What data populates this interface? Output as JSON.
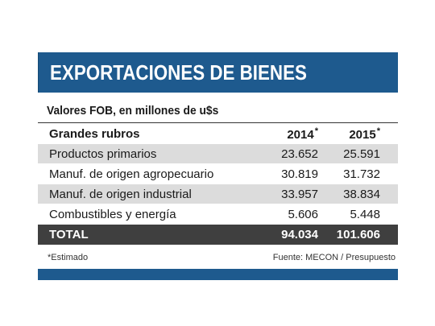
{
  "title": "EXPORTACIONES DE BIENES",
  "subtitle": "Valores FOB, en millones de u$s",
  "columns": {
    "name": "Grandes rubros",
    "year_a": "2014",
    "year_b": "2015",
    "mark": "*"
  },
  "rows": [
    {
      "name": "Productos primarios",
      "y2014": "23.652",
      "y2015": "25.591"
    },
    {
      "name": "Manuf. de origen agropecuario",
      "y2014": "30.819",
      "y2015": "31.732"
    },
    {
      "name": "Manuf. de origen industrial",
      "y2014": "33.957",
      "y2015": "38.834"
    },
    {
      "name": "Combustibles y energía",
      "y2014": "5.606",
      "y2015": "5.448"
    }
  ],
  "total": {
    "name": "TOTAL",
    "y2014": "94.034",
    "y2015": "101.606"
  },
  "footnote": "*Estimado",
  "source": "Fuente: MECON / Presupuesto",
  "colors": {
    "accent": "#1e5a8e",
    "row_shade": "#dcdcdc",
    "total_bg": "#3f3f3f"
  },
  "chart_data": {
    "type": "table",
    "title": "EXPORTACIONES DE BIENES",
    "subtitle": "Valores FOB, en millones de u$s",
    "columns": [
      "Grandes rubros",
      "2014*",
      "2015*"
    ],
    "categories": [
      "Productos primarios",
      "Manuf. de origen agropecuario",
      "Manuf. de origen industrial",
      "Combustibles y energía"
    ],
    "series": [
      {
        "name": "2014*",
        "values": [
          23652,
          30819,
          33957,
          5606
        ]
      },
      {
        "name": "2015*",
        "values": [
          25591,
          31732,
          38834,
          5448
        ]
      }
    ],
    "totals": {
      "2014*": 94034,
      "2015*": 101606
    }
  }
}
